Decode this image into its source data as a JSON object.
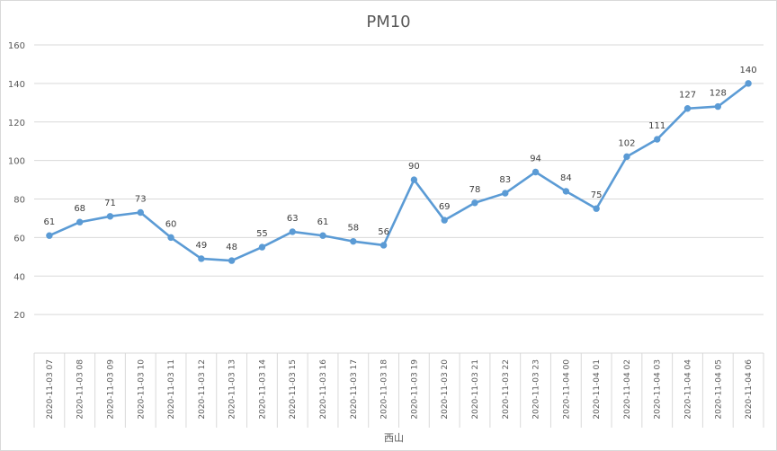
{
  "chart_data": {
    "type": "line",
    "title": "PM10",
    "xlabel": "",
    "ylabel": "",
    "group_label": "西山",
    "ylim": [
      0,
      160
    ],
    "y_ticks": [
      "20",
      "40",
      "60",
      "80",
      "100",
      "120",
      "140",
      "160"
    ],
    "grid": true,
    "legend": "none",
    "colors": {
      "series": "#5B9BD5",
      "grid": "#d9d9d9",
      "text": "#595959"
    },
    "categories": [
      "2020-11-03 07",
      "2020-11-03 08",
      "2020-11-03 09",
      "2020-11-03 10",
      "2020-11-03 11",
      "2020-11-03 12",
      "2020-11-03 13",
      "2020-11-03 14",
      "2020-11-03 15",
      "2020-11-03 16",
      "2020-11-03 17",
      "2020-11-03 18",
      "2020-11-03 19",
      "2020-11-03 20",
      "2020-11-03 21",
      "2020-11-03 22",
      "2020-11-03 23",
      "2020-11-04 00",
      "2020-11-04 01",
      "2020-11-04 02",
      "2020-11-04 03",
      "2020-11-04 04",
      "2020-11-04 05",
      "2020-11-04 06"
    ],
    "series": [
      {
        "values": [
          61,
          68,
          71,
          73,
          60,
          49,
          48,
          55,
          63,
          61,
          58,
          56,
          90,
          69,
          78,
          83,
          94,
          84,
          75,
          102,
          111,
          127,
          128,
          140
        ]
      }
    ]
  }
}
